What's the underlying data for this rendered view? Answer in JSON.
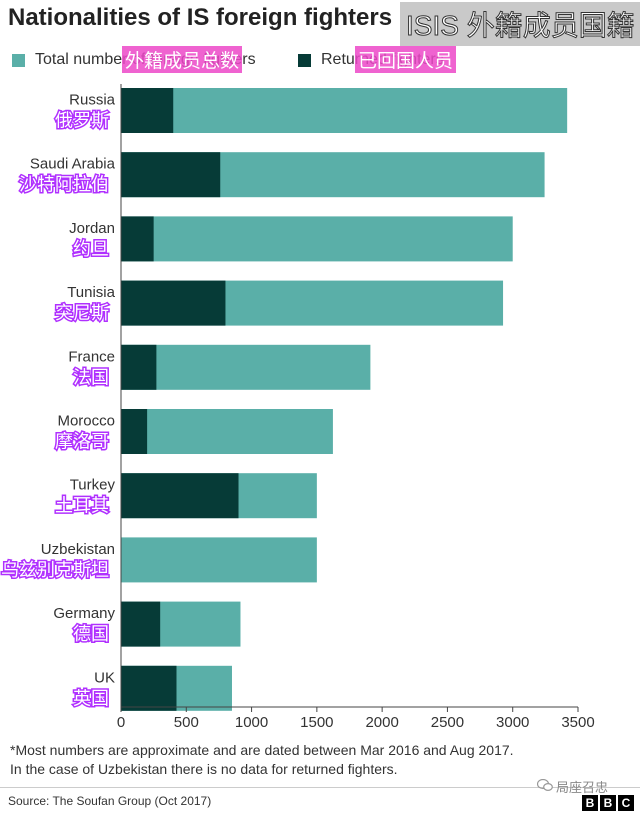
{
  "title": "Nationalities of IS foreign fighters",
  "title_overlay_cn": "ISIS 外籍成员国籍",
  "legend": [
    {
      "label": "Total number of foreign fighters",
      "label_cn": "外籍成员总数",
      "color": "#5aafa8"
    },
    {
      "label": "Returned fighters",
      "label_cn": "已回国人员",
      "color": "#063b37"
    }
  ],
  "chart_data": {
    "type": "bar",
    "orientation": "horizontal",
    "stacked": "overlay",
    "categories": [
      "Russia",
      "Saudi Arabia",
      "Jordan",
      "Tunisia",
      "France",
      "Morocco",
      "Turkey",
      "Uzbekistan",
      "Germany",
      "UK"
    ],
    "categories_cn": [
      "俄罗斯",
      "沙特阿拉伯",
      "约旦",
      "突尼斯",
      "法国",
      "摩洛哥",
      "土耳其",
      "乌兹别克斯坦",
      "德国",
      "英国"
    ],
    "series": [
      {
        "name": "Total number of foreign fighters",
        "color": "#5aafa8",
        "values": [
          3417,
          3244,
          3000,
          2926,
          1910,
          1623,
          1500,
          1500,
          915,
          850
        ]
      },
      {
        "name": "Returned fighters",
        "color": "#063b37",
        "values": [
          400,
          760,
          250,
          800,
          271,
          200,
          900,
          0,
          300,
          425
        ]
      }
    ],
    "xlim": [
      0,
      3500
    ],
    "xticks": [
      "0",
      "500",
      "1000",
      "1500",
      "2000",
      "2500",
      "3000",
      "3500"
    ],
    "grid": false,
    "legend_position": "top-left"
  },
  "notes": [
    "*Most numbers are approximate and are dated between Mar 2016 and Aug 2017.",
    "In the case of Uzbekistan there is no data for returned fighters."
  ],
  "source": "Source: The Soufan Group (Oct 2017)",
  "watermark": "局座召忠",
  "logo": [
    "B",
    "B",
    "C"
  ]
}
